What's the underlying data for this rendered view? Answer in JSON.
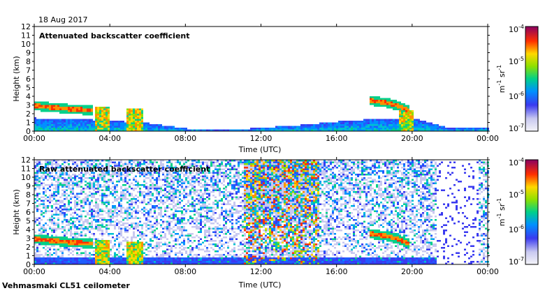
{
  "date": "18 Aug 2017",
  "footer": "Vehmasmaki CL51 ceilometer",
  "chart_data": [
    {
      "type": "heatmap",
      "title": "Attenuated backscatter coefficient",
      "xlabel": "Time (UTC)",
      "ylabel": "Height (km)",
      "xticks": [
        "00:00",
        "04:00",
        "08:00",
        "12:00",
        "16:00",
        "20:00",
        "00:00"
      ],
      "yticks": [
        "0",
        "1",
        "2",
        "3",
        "4",
        "5",
        "6",
        "7",
        "8",
        "9",
        "10",
        "11",
        "12"
      ],
      "xlim": [
        0,
        24
      ],
      "ylim": [
        0,
        12
      ],
      "colorbar": {
        "scale": "log",
        "range": [
          1e-07,
          0.0001
        ],
        "ticks": [
          "10",
          "10",
          "10",
          "10"
        ],
        "exponents": [
          "-7",
          "-6",
          "-5",
          "-4"
        ],
        "unit_main": "m",
        "unit_sup1": "-1",
        "unit_mid": " sr",
        "unit_sup2": "-1"
      },
      "features": [
        {
          "kind": "boundary_layer",
          "x": [
            0,
            2,
            4,
            6,
            8,
            10,
            12,
            14,
            16,
            18,
            20,
            22,
            24
          ],
          "top": [
            1.6,
            1.5,
            1.3,
            1.0,
            0.4,
            0.2,
            0.5,
            0.8,
            1.2,
            1.5,
            1.6,
            0.4,
            0.6
          ]
        },
        {
          "kind": "cloud_layer",
          "x": [
            0,
            1,
            2,
            3
          ],
          "height": [
            3.0,
            2.8,
            2.6,
            2.5
          ]
        },
        {
          "kind": "cloud_layer",
          "x": [
            17.7,
            18.5,
            19.2,
            19.8
          ],
          "height": [
            3.6,
            3.4,
            3.0,
            2.5
          ]
        },
        {
          "kind": "rain_shaft",
          "x": [
            3.2,
            3.9
          ],
          "top": 2.8
        },
        {
          "kind": "rain_shaft",
          "x": [
            4.8,
            5.7
          ],
          "top": 2.6
        },
        {
          "kind": "rain_shaft",
          "x": [
            19.2,
            20.0
          ],
          "top": 2.4
        }
      ]
    },
    {
      "type": "heatmap",
      "title": "Raw attenuated backscatter coefficient",
      "xlabel": "Time (UTC)",
      "ylabel": "Height (km)",
      "xticks": [
        "00:00",
        "04:00",
        "08:00",
        "12:00",
        "16:00",
        "20:00",
        "00:00"
      ],
      "yticks": [
        "0",
        "1",
        "2",
        "3",
        "4",
        "5",
        "6",
        "7",
        "8",
        "9",
        "10",
        "11",
        "12"
      ],
      "xlim": [
        0,
        24
      ],
      "ylim": [
        0,
        12
      ],
      "colorbar": {
        "scale": "log",
        "range": [
          1e-07,
          0.0001
        ],
        "ticks": [
          "10",
          "10",
          "10",
          "10"
        ],
        "exponents": [
          "-7",
          "-6",
          "-5",
          "-4"
        ],
        "unit_main": "m",
        "unit_sup1": "-1",
        "unit_mid": " sr",
        "unit_sup2": "-1"
      },
      "features": [
        {
          "kind": "noise_field",
          "x": [
            0,
            24
          ],
          "note_level_high_at": [
            11,
            15
          ]
        },
        {
          "kind": "cloud_layer",
          "x": [
            0,
            1,
            2,
            3
          ],
          "height": [
            3.0,
            2.8,
            2.6,
            2.5
          ]
        },
        {
          "kind": "cloud_layer",
          "x": [
            17.7,
            18.5,
            19.2,
            19.8
          ],
          "height": [
            3.6,
            3.4,
            3.0,
            2.5
          ]
        },
        {
          "kind": "rain_shaft",
          "x": [
            3.2,
            3.9
          ],
          "top": 2.8
        },
        {
          "kind": "rain_shaft",
          "x": [
            4.8,
            5.7
          ],
          "top": 2.6
        }
      ]
    }
  ]
}
